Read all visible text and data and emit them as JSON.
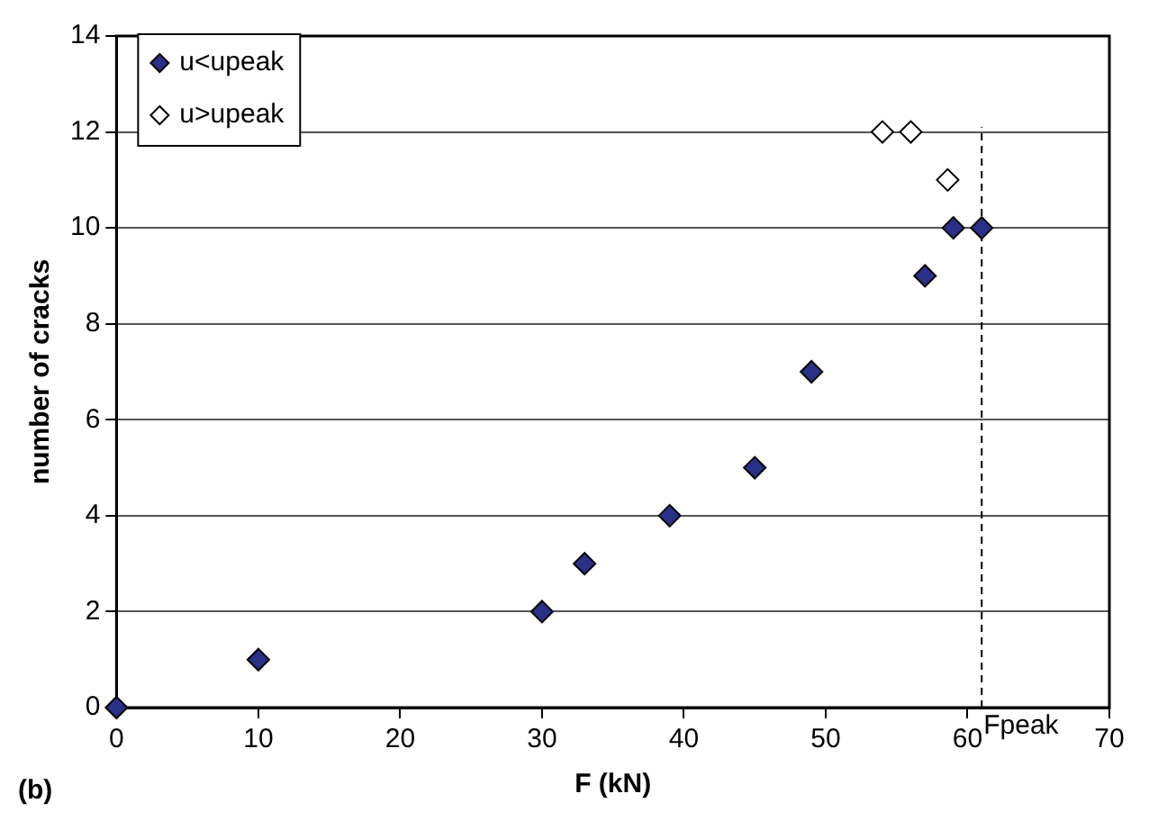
{
  "chart_data": {
    "type": "scatter",
    "xlabel": "F (kN)",
    "ylabel": "number of cracks",
    "xlim": [
      0,
      70
    ],
    "xticks": [
      0,
      10,
      20,
      30,
      40,
      50,
      60,
      70
    ],
    "ylim": [
      0,
      14
    ],
    "yticks": [
      0,
      2,
      4,
      6,
      8,
      10,
      12,
      14
    ],
    "grid": "y",
    "legend": "top left",
    "marker": "diamond",
    "series": [
      {
        "name": "u<upeak",
        "color": "#2b2f86",
        "x": [
          0,
          10,
          30,
          33,
          39,
          45,
          49,
          57,
          59,
          61
        ],
        "values": [
          0,
          1,
          2,
          3,
          4,
          5,
          7,
          9,
          10,
          10
        ]
      },
      {
        "name": "u>upeak",
        "color": "#ffffff",
        "x": [
          54,
          56,
          58.6
        ],
        "values": [
          12,
          12,
          11
        ]
      }
    ],
    "ref_lines": [
      {
        "axis": "x",
        "value": 61,
        "label": "Fpeak",
        "color": "#000000",
        "line_style": "dashed"
      }
    ],
    "annotations": [
      "(b)"
    ]
  }
}
